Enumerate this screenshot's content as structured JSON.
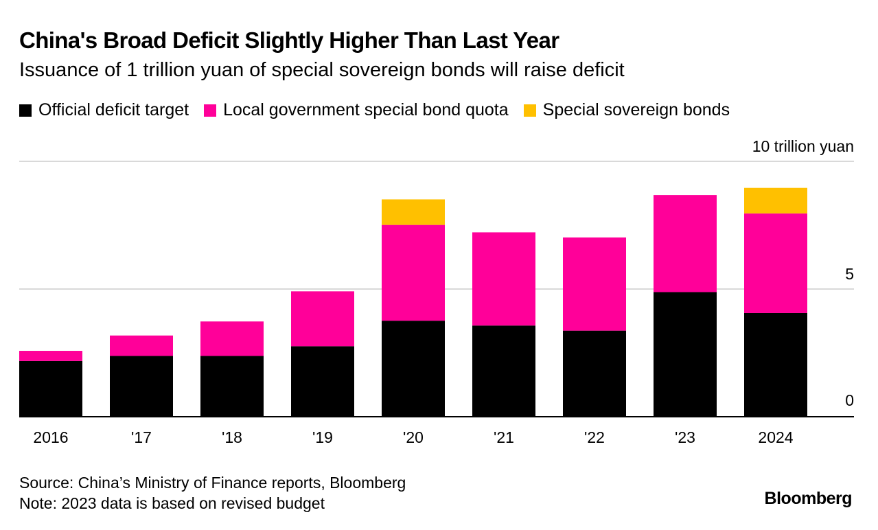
{
  "header": {
    "title": "China's Broad Deficit Slightly Higher Than Last Year",
    "subtitle": "Issuance of 1 trillion yuan of special sovereign bonds will raise deficit"
  },
  "legend": [
    {
      "label": "Official deficit target",
      "color": "#000000"
    },
    {
      "label": "Local government special bond quota",
      "color": "#ff0099"
    },
    {
      "label": "Special sovereign bonds",
      "color": "#ffc000"
    }
  ],
  "footer": {
    "source": "Source: China’s Ministry of Finance reports, Bloomberg",
    "note": "Note: 2023 data is based on revised budget",
    "brand": "Bloomberg"
  },
  "chart_data": {
    "type": "bar",
    "stacked": true,
    "title": "China's Broad Deficit Slightly Higher Than Last Year",
    "ylabel": "10 trillion yuan",
    "ylim": [
      0,
      10
    ],
    "yticks": [
      {
        "value": 0,
        "label": "0"
      },
      {
        "value": 5,
        "label": "5"
      },
      {
        "value": 10,
        "label": "10 trillion yuan"
      }
    ],
    "categories": [
      "2016",
      "'17",
      "'18",
      "'19",
      "'20",
      "'21",
      "'22",
      "'23",
      "2024"
    ],
    "series": [
      {
        "name": "Official deficit target",
        "color": "#000000",
        "values": [
          2.18,
          2.38,
          2.38,
          2.76,
          3.76,
          3.57,
          3.37,
          4.88,
          4.06
        ]
      },
      {
        "name": "Local government special bond quota",
        "color": "#ff0099",
        "values": [
          0.4,
          0.8,
          1.35,
          2.15,
          3.75,
          3.65,
          3.65,
          3.8,
          3.9
        ]
      },
      {
        "name": "Special sovereign bonds",
        "color": "#ffc000",
        "values": [
          0,
          0,
          0,
          0,
          1.0,
          0,
          0,
          0,
          1.0
        ]
      }
    ]
  }
}
